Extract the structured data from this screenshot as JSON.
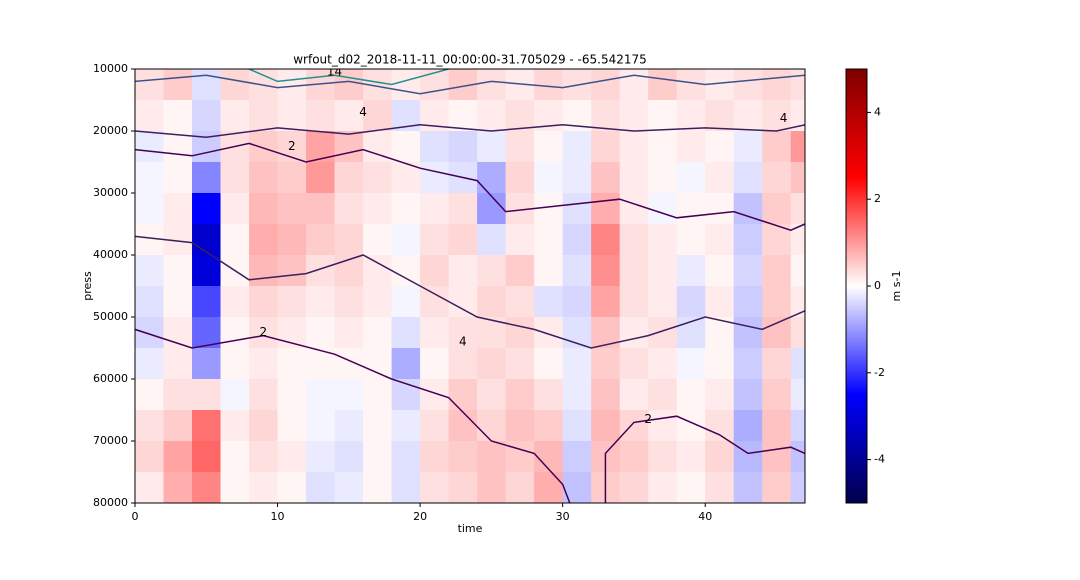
{
  "chart_data": {
    "type": "heatmap",
    "title": "wrfout_d02_2018-11-11_00:00:00-31.705029 - -65.542175",
    "xlabel": "time",
    "ylabel": "press",
    "colorbar_label": "m s-1",
    "xlim": [
      0,
      47
    ],
    "ylim": [
      80000,
      10000
    ],
    "xticks": [
      0,
      10,
      20,
      30,
      40
    ],
    "yticks": [
      10000,
      20000,
      30000,
      40000,
      50000,
      60000,
      70000,
      80000
    ],
    "clim": [
      -5,
      5
    ],
    "cticks": [
      -4,
      -2,
      0,
      2,
      4
    ],
    "colormap": [
      "#00004c",
      "#0000ff",
      "#ffffff",
      "#ff0000",
      "#7f0000"
    ],
    "x_edges": [
      0,
      2,
      4,
      6,
      8,
      10,
      12,
      14,
      16,
      18,
      20,
      22,
      24,
      26,
      28,
      30,
      32,
      34,
      36,
      38,
      40,
      42,
      44,
      46,
      47
    ],
    "y_edges": [
      10000,
      15000,
      20000,
      25000,
      30000,
      35000,
      40000,
      45000,
      50000,
      55000,
      60000,
      65000,
      70000,
      75000,
      80000
    ],
    "values": [
      [
        0.3,
        0.5,
        -0.3,
        0.4,
        0.3,
        0.2,
        0.4,
        0.5,
        0.3,
        0.2,
        0.3,
        0.5,
        0.3,
        0.2,
        0.4,
        0.3,
        0.4,
        0.2,
        0.5,
        0.3,
        0.2,
        0.3,
        0.4,
        0.3
      ],
      [
        0.2,
        0.1,
        -0.4,
        0.2,
        0.3,
        0.2,
        0.3,
        0.2,
        0.4,
        -0.3,
        0.2,
        0.1,
        0.2,
        0.3,
        0.2,
        0.1,
        0.3,
        0.2,
        0.1,
        0.2,
        0.3,
        0.2,
        0.3,
        0.2
      ],
      [
        -0.2,
        0.1,
        -0.5,
        0.3,
        0.5,
        0.4,
        0.9,
        0.6,
        0.2,
        0.1,
        -0.3,
        -0.4,
        -0.2,
        0.3,
        0.1,
        -0.2,
        0.4,
        0.2,
        0.1,
        0.2,
        0.1,
        -0.2,
        0.5,
        1.0
      ],
      [
        -0.1,
        0.1,
        -1.2,
        0.3,
        0.6,
        0.5,
        1.0,
        0.4,
        0.3,
        0.2,
        -0.2,
        -0.3,
        -0.8,
        0.4,
        -0.1,
        -0.2,
        0.6,
        0.2,
        0.1,
        -0.1,
        0.2,
        -0.3,
        0.4,
        0.6
      ],
      [
        -0.1,
        0.2,
        -2.5,
        0.2,
        0.7,
        0.6,
        0.6,
        0.3,
        0.2,
        0.1,
        0.2,
        0.3,
        -1.0,
        0.3,
        0.1,
        -0.3,
        0.8,
        0.2,
        -0.1,
        0.1,
        0.1,
        -0.6,
        0.5,
        0.3
      ],
      [
        0.1,
        0.2,
        -3.2,
        0.1,
        0.8,
        0.7,
        0.5,
        0.4,
        0.1,
        -0.1,
        0.3,
        0.4,
        -0.3,
        0.2,
        0.1,
        -0.4,
        1.2,
        0.3,
        0.2,
        0.1,
        0.2,
        -0.5,
        0.4,
        0.2
      ],
      [
        -0.2,
        0.1,
        -3.0,
        0.1,
        0.7,
        0.6,
        0.3,
        0.4,
        0.2,
        0.1,
        0.4,
        0.2,
        0.3,
        0.5,
        0.1,
        -0.3,
        1.1,
        0.3,
        0.2,
        -0.2,
        0.1,
        -0.4,
        0.5,
        0.1
      ],
      [
        -0.3,
        0.1,
        -1.8,
        0.2,
        0.4,
        0.3,
        0.2,
        0.3,
        0.2,
        -0.1,
        0.3,
        0.2,
        0.4,
        0.3,
        -0.3,
        -0.4,
        0.9,
        0.3,
        0.2,
        -0.4,
        0.2,
        -0.5,
        0.5,
        0.2
      ],
      [
        -0.4,
        0.2,
        -1.5,
        0.1,
        0.3,
        0.2,
        0.1,
        0.2,
        0.1,
        -0.3,
        0.2,
        0.3,
        0.3,
        0.4,
        0.2,
        -0.3,
        0.6,
        0.2,
        0.3,
        -0.3,
        0.1,
        -0.6,
        0.6,
        0.3
      ],
      [
        -0.2,
        0.2,
        -1.0,
        0.1,
        0.2,
        0.1,
        0.1,
        0.1,
        0.1,
        -0.8,
        0.1,
        0.3,
        0.4,
        0.3,
        0.1,
        -0.2,
        0.5,
        0.3,
        0.2,
        -0.1,
        0.1,
        -0.5,
        0.4,
        -0.3
      ],
      [
        0.1,
        0.3,
        0.3,
        -0.1,
        0.3,
        0.1,
        -0.1,
        -0.1,
        0.1,
        -0.4,
        0.2,
        0.5,
        0.3,
        0.5,
        0.3,
        -0.2,
        0.6,
        0.2,
        0.3,
        0.1,
        0.2,
        -0.6,
        0.5,
        -0.2
      ],
      [
        0.3,
        0.5,
        1.4,
        0.2,
        0.4,
        0.1,
        -0.1,
        -0.2,
        0.1,
        -0.2,
        0.3,
        0.6,
        0.4,
        0.6,
        0.5,
        -0.3,
        0.7,
        0.4,
        0.2,
        0.1,
        0.3,
        -0.8,
        0.6,
        -0.4
      ],
      [
        0.4,
        0.9,
        1.5,
        0.1,
        0.3,
        0.2,
        -0.2,
        -0.3,
        0.1,
        -0.3,
        0.4,
        0.5,
        0.6,
        0.5,
        0.7,
        -0.5,
        0.6,
        0.5,
        0.3,
        0.2,
        0.4,
        -0.7,
        0.6,
        -0.6
      ],
      [
        0.2,
        0.8,
        1.2,
        0.1,
        0.2,
        0.1,
        -0.3,
        -0.2,
        0.1,
        -0.3,
        0.3,
        0.4,
        0.6,
        0.4,
        0.8,
        -0.6,
        0.5,
        0.4,
        0.2,
        0.1,
        0.3,
        -0.6,
        0.5,
        -0.5
      ]
    ],
    "contours": [
      {
        "level": 4,
        "color": "#3b1f5e",
        "x": [
          0,
          5,
          10,
          15,
          20,
          25,
          30,
          35,
          40,
          45,
          47
        ],
        "y": [
          20000,
          21000,
          19500,
          20500,
          19000,
          20000,
          19000,
          20000,
          19500,
          20000,
          19000
        ],
        "label_at": [
          45.5,
          18000
        ]
      },
      {
        "level": 2,
        "color": "#440154",
        "x": [
          0,
          4,
          8,
          12,
          16,
          20,
          24,
          26,
          30,
          34,
          38,
          42,
          46,
          47
        ],
        "y": [
          23000,
          24000,
          22000,
          25000,
          23000,
          26000,
          28000,
          33000,
          32000,
          31000,
          34000,
          33000,
          36000,
          35000
        ],
        "label_at": [
          11,
          22500
        ]
      },
      {
        "level": 4,
        "color": "#3b1f5e",
        "x": [
          0,
          4,
          8,
          12,
          16,
          20,
          24,
          28,
          32,
          36,
          40,
          44,
          47
        ],
        "y": [
          37000,
          38000,
          44000,
          43000,
          40000,
          45000,
          50000,
          52000,
          55000,
          53000,
          50000,
          52000,
          49000
        ],
        "label_at": [
          23,
          54000
        ]
      },
      {
        "level": 2,
        "color": "#440154",
        "x": [
          0,
          4,
          9,
          14,
          18,
          22,
          25,
          28,
          30,
          30.5
        ],
        "y": [
          52000,
          55000,
          53000,
          56000,
          60000,
          63000,
          70000,
          72000,
          77000,
          80000
        ],
        "label_at": [
          9,
          52500
        ]
      },
      {
        "level": 2,
        "color": "#440154",
        "x": [
          33,
          33,
          35,
          38,
          41,
          43,
          46,
          47
        ],
        "y": [
          80000,
          72000,
          67000,
          66000,
          69000,
          72000,
          71000,
          72000
        ],
        "label_at": [
          36,
          66500
        ]
      },
      {
        "level": 4,
        "color": "#3b528b",
        "x": [
          0,
          5,
          10,
          15,
          20,
          25,
          30,
          35,
          40,
          47
        ],
        "y": [
          12000,
          11000,
          13000,
          12000,
          14000,
          12000,
          13000,
          11000,
          12500,
          11000
        ],
        "label_at": [
          16,
          17000
        ]
      },
      {
        "level": 14,
        "color": "#21918c",
        "x": [
          8,
          10,
          14,
          18,
          22
        ],
        "y": [
          10000,
          12000,
          11000,
          12500,
          10000
        ],
        "label_at": [
          14,
          10500
        ]
      }
    ]
  }
}
